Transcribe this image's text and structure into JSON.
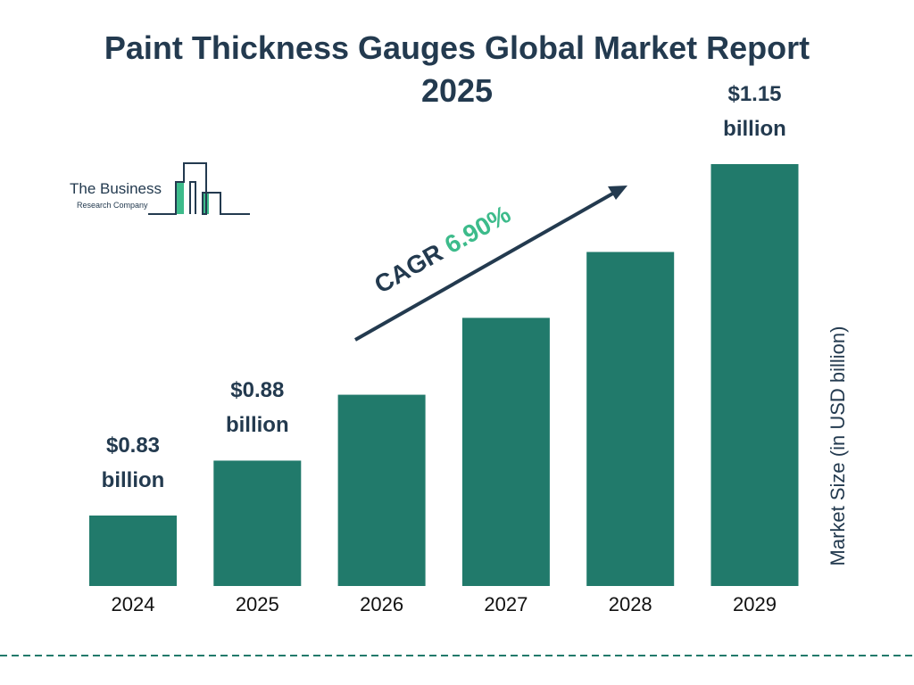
{
  "chart_data": {
    "type": "bar",
    "title": "Paint Thickness Gauges Global Market Report 2025",
    "categories": [
      "2024",
      "2025",
      "2026",
      "2027",
      "2028",
      "2029"
    ],
    "values": [
      0.83,
      0.88,
      0.94,
      1.01,
      1.07,
      1.15
    ],
    "value_labels": [
      "$0.83 billion",
      "$0.88 billion",
      null,
      null,
      null,
      "$1.15 billion"
    ],
    "color": "#217a6b",
    "y_label": "Market Size (in USD billion)",
    "annotation": {
      "label": "CAGR",
      "value": "6.90%",
      "color": "#3dbb8b"
    },
    "logo": {
      "line1": "The Business",
      "line2": "Research Company"
    }
  }
}
